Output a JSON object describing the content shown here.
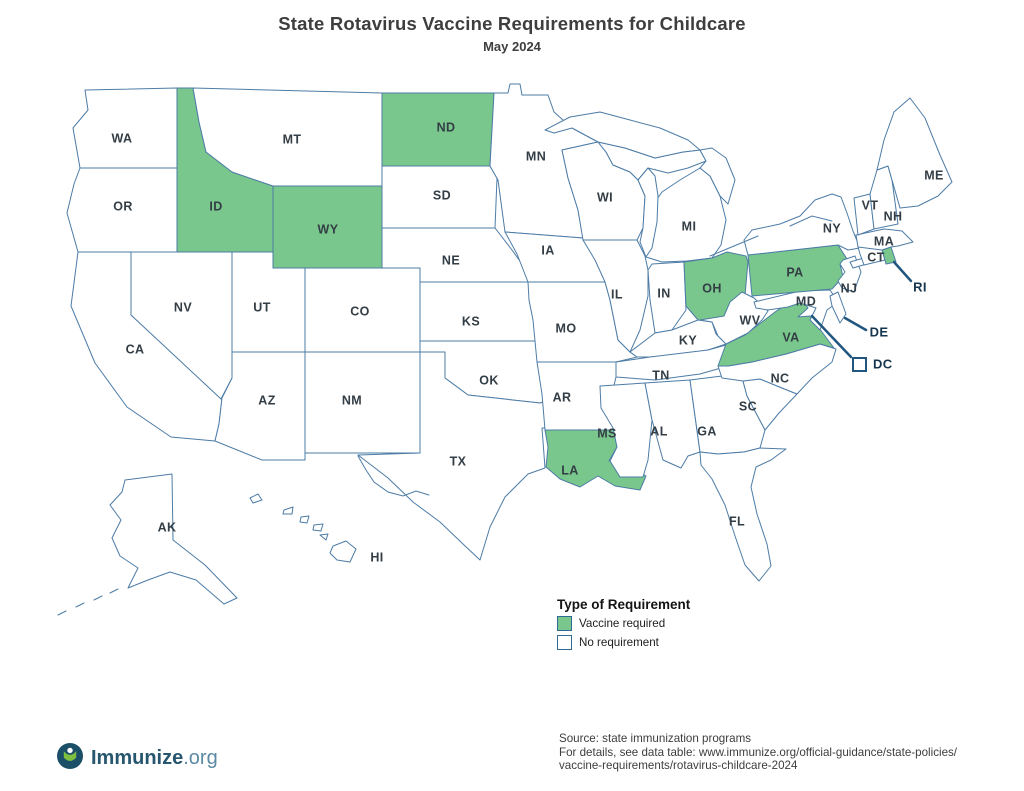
{
  "title": "State Rotavirus Vaccine Requirements for Childcare",
  "subtitle": "May 2024",
  "colors": {
    "required": "#79C78C",
    "none": "#ffffff",
    "border": "#4d7ca6",
    "callout": "#20567f",
    "swatch_border": "#2e6a93",
    "label": "#333d45"
  },
  "legend": {
    "title": "Type of Requirement",
    "items": [
      {
        "key": "required",
        "label": "Vaccine required"
      },
      {
        "key": "none",
        "label": "No requirement"
      }
    ]
  },
  "map": {
    "states": [
      {
        "abbr": "WA",
        "requirement": "none"
      },
      {
        "abbr": "OR",
        "requirement": "none"
      },
      {
        "abbr": "CA",
        "requirement": "none"
      },
      {
        "abbr": "NV",
        "requirement": "none"
      },
      {
        "abbr": "ID",
        "requirement": "required"
      },
      {
        "abbr": "MT",
        "requirement": "none"
      },
      {
        "abbr": "WY",
        "requirement": "required"
      },
      {
        "abbr": "UT",
        "requirement": "none"
      },
      {
        "abbr": "CO",
        "requirement": "none"
      },
      {
        "abbr": "AZ",
        "requirement": "none"
      },
      {
        "abbr": "NM",
        "requirement": "none"
      },
      {
        "abbr": "ND",
        "requirement": "required"
      },
      {
        "abbr": "SD",
        "requirement": "none"
      },
      {
        "abbr": "NE",
        "requirement": "none"
      },
      {
        "abbr": "KS",
        "requirement": "none"
      },
      {
        "abbr": "OK",
        "requirement": "none"
      },
      {
        "abbr": "TX",
        "requirement": "none"
      },
      {
        "abbr": "MN",
        "requirement": "none"
      },
      {
        "abbr": "IA",
        "requirement": "none"
      },
      {
        "abbr": "MO",
        "requirement": "none"
      },
      {
        "abbr": "AR",
        "requirement": "none"
      },
      {
        "abbr": "LA",
        "requirement": "required"
      },
      {
        "abbr": "WI",
        "requirement": "none"
      },
      {
        "abbr": "IL",
        "requirement": "none"
      },
      {
        "abbr": "IN",
        "requirement": "none"
      },
      {
        "abbr": "MI",
        "requirement": "none"
      },
      {
        "abbr": "OH",
        "requirement": "required"
      },
      {
        "abbr": "KY",
        "requirement": "none"
      },
      {
        "abbr": "TN",
        "requirement": "none"
      },
      {
        "abbr": "MS",
        "requirement": "none"
      },
      {
        "abbr": "AL",
        "requirement": "none"
      },
      {
        "abbr": "GA",
        "requirement": "none"
      },
      {
        "abbr": "FL",
        "requirement": "none"
      },
      {
        "abbr": "SC",
        "requirement": "none"
      },
      {
        "abbr": "NC",
        "requirement": "none"
      },
      {
        "abbr": "VA",
        "requirement": "required"
      },
      {
        "abbr": "WV",
        "requirement": "none"
      },
      {
        "abbr": "MD",
        "requirement": "none"
      },
      {
        "abbr": "DE",
        "requirement": "none"
      },
      {
        "abbr": "PA",
        "requirement": "required"
      },
      {
        "abbr": "NJ",
        "requirement": "none"
      },
      {
        "abbr": "NY",
        "requirement": "none"
      },
      {
        "abbr": "CT",
        "requirement": "none"
      },
      {
        "abbr": "RI",
        "requirement": "required"
      },
      {
        "abbr": "MA",
        "requirement": "none"
      },
      {
        "abbr": "VT",
        "requirement": "none"
      },
      {
        "abbr": "NH",
        "requirement": "none"
      },
      {
        "abbr": "ME",
        "requirement": "none"
      },
      {
        "abbr": "AK",
        "requirement": "none"
      },
      {
        "abbr": "HI",
        "requirement": "none"
      },
      {
        "abbr": "DC",
        "requirement": "none"
      }
    ],
    "callout_states": [
      "RI",
      "DE",
      "DC"
    ]
  },
  "footer": {
    "logo_text": "Immunize",
    "logo_suffix": ".org",
    "source_lines": [
      "Source: state immunization programs",
      "For details, see data table: www.immunize.org/official-guidance/state-policies/",
      "vaccine-requirements/rotavirus-childcare-2024"
    ]
  }
}
